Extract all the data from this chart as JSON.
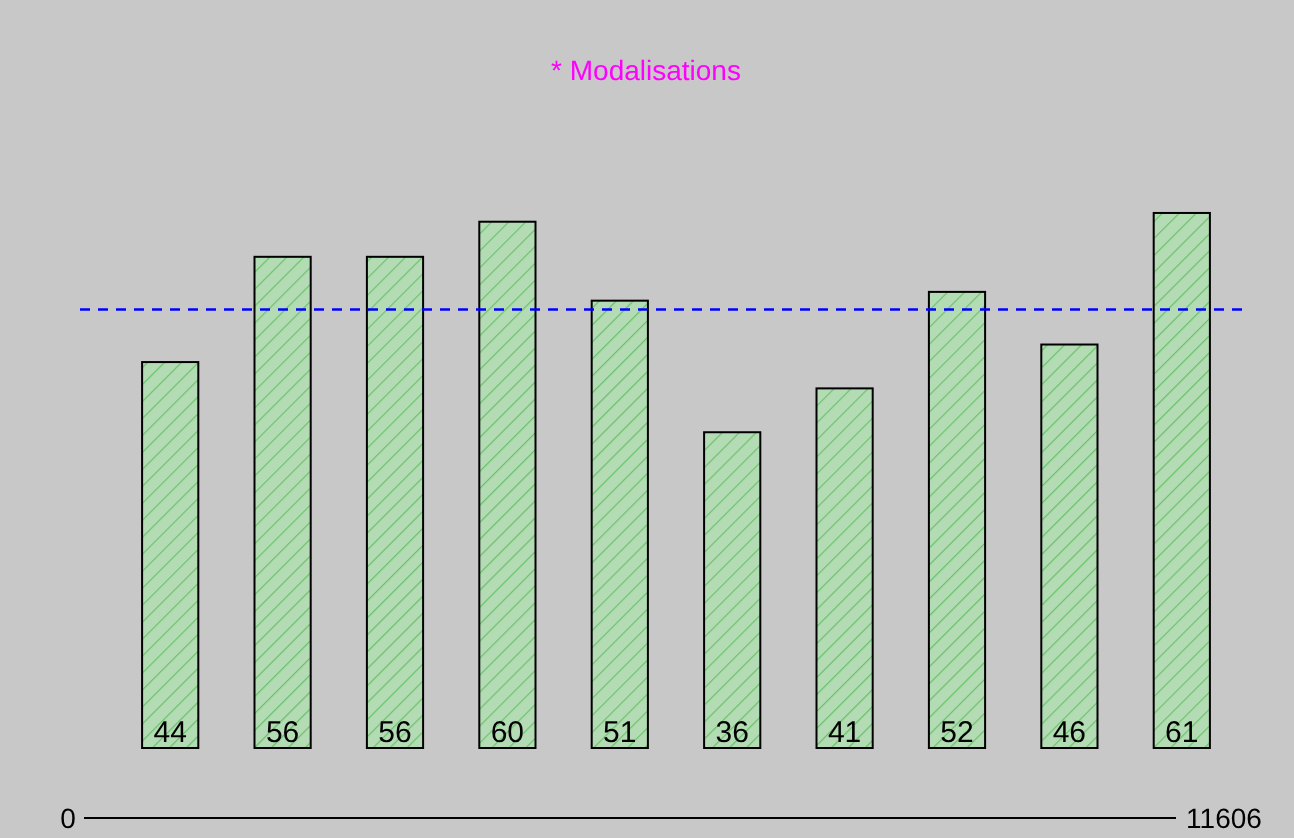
{
  "chart_data": {
    "type": "bar",
    "title": "* Modalisations",
    "categories": [
      null,
      null,
      null,
      null,
      null,
      null,
      null,
      null,
      null,
      null
    ],
    "values": [
      44,
      56,
      56,
      60,
      51,
      36,
      41,
      52,
      46,
      61
    ],
    "color": "#b4dcb4",
    "data_labels": true,
    "ref_lines": [
      {
        "axis": "y",
        "value": 50,
        "color": "#0000ff",
        "line_style": "dashed"
      }
    ],
    "annotations": [
      "0",
      "11606"
    ]
  }
}
